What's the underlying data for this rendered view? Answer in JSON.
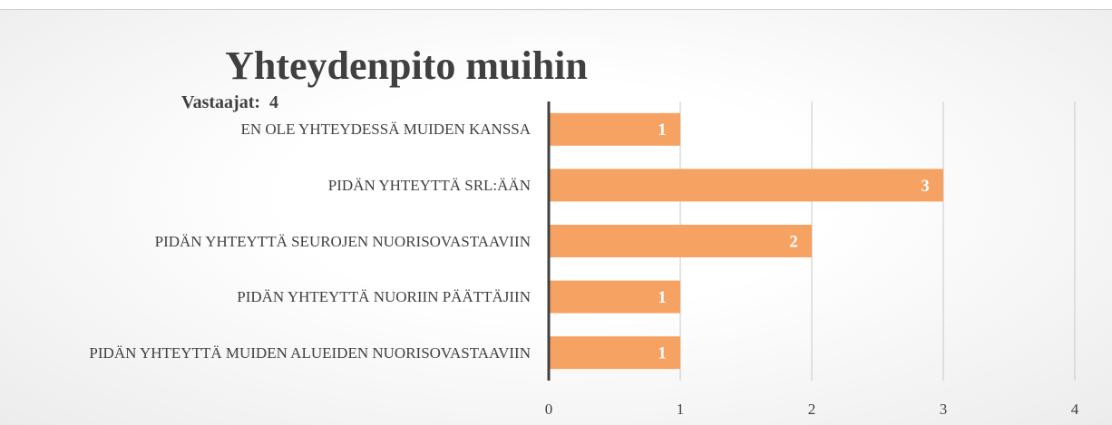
{
  "chart_data": {
    "type": "bar",
    "orientation": "horizontal",
    "title": "Yhteydenpito muihin",
    "subtitle": "Vastaajat:  4",
    "categories": [
      "EN OLE YHTEYDESSÄ MUIDEN KANSSA",
      "PIDÄN YHTEYTTÄ SRL:ÄÄN",
      "PIDÄN YHTEYTTÄ SEUROJEN NUORISOVASTAAVIIN",
      "PIDÄN YHTEYTTÄ NUORIIN PÄÄTTÄJIIN",
      "PIDÄN YHTEYTTÄ MUIDEN ALUEIDEN NUORISOVASTAAVIIN"
    ],
    "values": [
      1,
      3,
      2,
      1,
      1
    ],
    "color": "#f5a263",
    "xlim": [
      0,
      4
    ],
    "xticks": [
      0,
      1,
      2,
      3,
      4
    ],
    "grid": true
  }
}
